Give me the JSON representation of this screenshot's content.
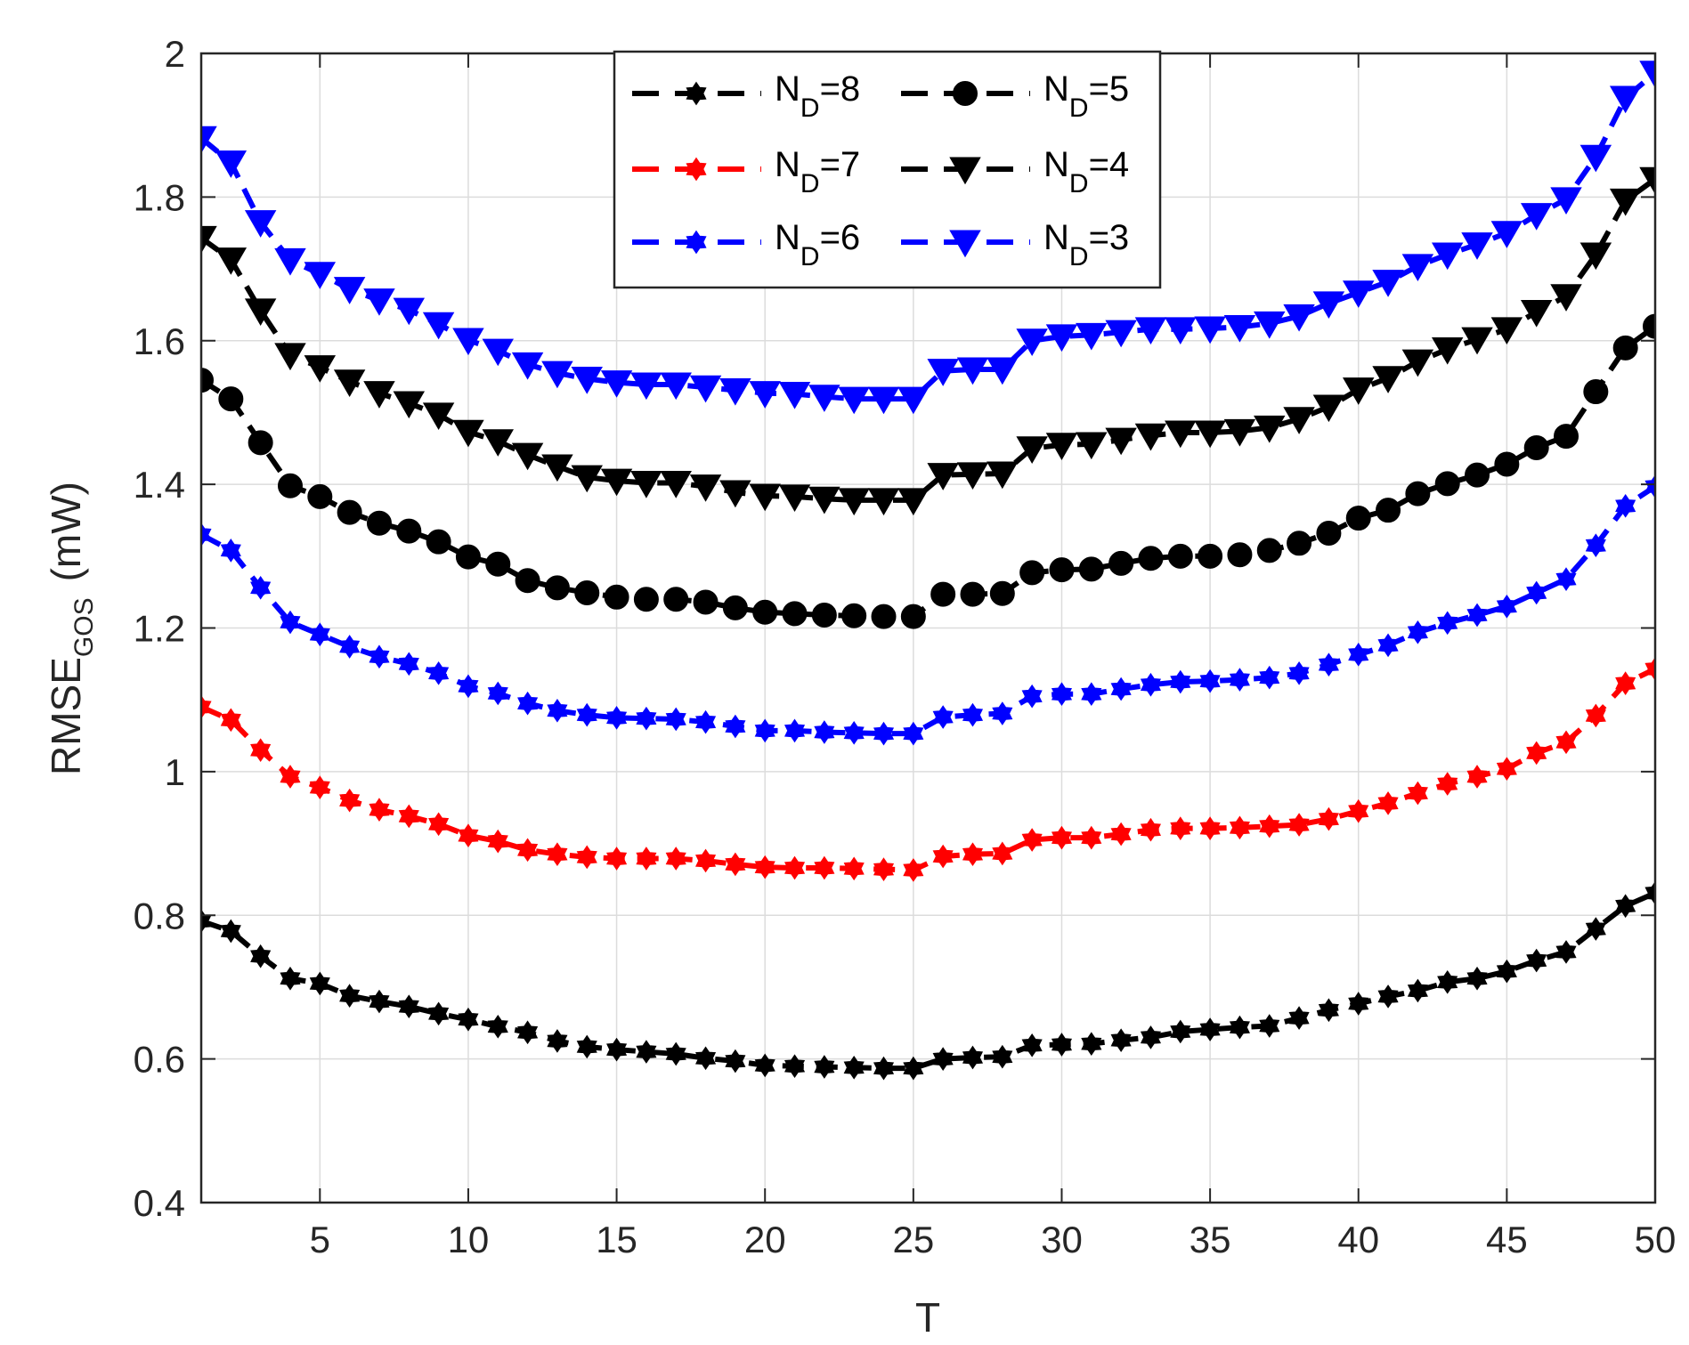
{
  "chart_data": {
    "type": "line",
    "xlabel": "T",
    "ylabel": {
      "main": "RMSE",
      "sub": "GOS",
      "unit": "(mW)"
    },
    "xlim": [
      1,
      50
    ],
    "ylim": [
      0.4,
      2
    ],
    "xticks": [
      5,
      10,
      15,
      20,
      25,
      30,
      35,
      40,
      45,
      50
    ],
    "yticks": [
      0.4,
      0.6,
      0.8,
      1,
      1.2,
      1.4,
      1.6,
      1.8,
      2
    ],
    "xtick_labels": [
      "5",
      "10",
      "15",
      "20",
      "25",
      "30",
      "35",
      "40",
      "45",
      "50"
    ],
    "ytick_labels": [
      "0.4",
      "0.6",
      "0.8",
      "1",
      "1.2",
      "1.4",
      "1.6",
      "1.8",
      "2"
    ],
    "grid": true,
    "legend_position": "top-center",
    "x": [
      1,
      2,
      3,
      4,
      5,
      6,
      7,
      8,
      9,
      10,
      11,
      12,
      13,
      14,
      15,
      16,
      17,
      18,
      19,
      20,
      21,
      22,
      23,
      24,
      25,
      26,
      27,
      28,
      29,
      30,
      31,
      32,
      33,
      34,
      35,
      36,
      37,
      38,
      39,
      40,
      41,
      42,
      43,
      44,
      45,
      46,
      47,
      48,
      49,
      50
    ],
    "series": [
      {
        "name": "N_D=8",
        "label_main": "N",
        "label_sub": "D",
        "label_suffix": "=8",
        "color": "#000000",
        "marker": "hexagram",
        "values": [
          0.792,
          0.778,
          0.743,
          0.712,
          0.705,
          0.688,
          0.68,
          0.673,
          0.663,
          0.655,
          0.645,
          0.637,
          0.625,
          0.617,
          0.613,
          0.61,
          0.607,
          0.601,
          0.597,
          0.591,
          0.59,
          0.589,
          0.588,
          0.587,
          0.587,
          0.6,
          0.602,
          0.603,
          0.619,
          0.62,
          0.621,
          0.626,
          0.63,
          0.638,
          0.641,
          0.644,
          0.646,
          0.657,
          0.668,
          0.677,
          0.687,
          0.695,
          0.707,
          0.712,
          0.722,
          0.737,
          0.749,
          0.781,
          0.813,
          0.831
        ]
      },
      {
        "name": "N_D=7",
        "label_main": "N",
        "label_sub": "D",
        "label_suffix": "=7",
        "color": "#ff0000",
        "marker": "hexagram",
        "values": [
          1.09,
          1.072,
          1.03,
          0.993,
          0.978,
          0.96,
          0.947,
          0.938,
          0.927,
          0.911,
          0.903,
          0.891,
          0.885,
          0.881,
          0.879,
          0.879,
          0.879,
          0.876,
          0.871,
          0.867,
          0.866,
          0.866,
          0.865,
          0.864,
          0.863,
          0.882,
          0.885,
          0.886,
          0.905,
          0.908,
          0.908,
          0.913,
          0.919,
          0.921,
          0.921,
          0.922,
          0.924,
          0.926,
          0.934,
          0.945,
          0.956,
          0.97,
          0.983,
          0.993,
          1.004,
          1.026,
          1.041,
          1.078,
          1.123,
          1.143
        ]
      },
      {
        "name": "N_D=6",
        "label_main": "N",
        "label_sub": "D",
        "label_suffix": "=6",
        "color": "#0000ff",
        "marker": "hexagram",
        "values": [
          1.33,
          1.308,
          1.256,
          1.208,
          1.191,
          1.174,
          1.16,
          1.15,
          1.137,
          1.119,
          1.109,
          1.095,
          1.085,
          1.079,
          1.075,
          1.074,
          1.073,
          1.069,
          1.063,
          1.057,
          1.057,
          1.055,
          1.054,
          1.053,
          1.053,
          1.076,
          1.079,
          1.081,
          1.105,
          1.108,
          1.108,
          1.115,
          1.121,
          1.125,
          1.126,
          1.128,
          1.131,
          1.137,
          1.149,
          1.163,
          1.176,
          1.194,
          1.207,
          1.218,
          1.23,
          1.249,
          1.268,
          1.315,
          1.37,
          1.397
        ]
      },
      {
        "name": "N_D=5",
        "label_main": "N",
        "label_sub": "D",
        "label_suffix": "=5",
        "color": "#000000",
        "marker": "circle",
        "values": [
          1.545,
          1.519,
          1.458,
          1.398,
          1.383,
          1.361,
          1.346,
          1.335,
          1.32,
          1.299,
          1.289,
          1.266,
          1.256,
          1.249,
          1.243,
          1.24,
          1.24,
          1.236,
          1.228,
          1.222,
          1.22,
          1.218,
          1.217,
          1.216,
          1.216,
          1.247,
          1.247,
          1.248,
          1.277,
          1.281,
          1.282,
          1.29,
          1.297,
          1.3,
          1.3,
          1.302,
          1.308,
          1.318,
          1.332,
          1.353,
          1.364,
          1.387,
          1.401,
          1.413,
          1.428,
          1.451,
          1.467,
          1.529,
          1.59,
          1.62
        ]
      },
      {
        "name": "N_D=4",
        "label_main": "N",
        "label_sub": "D",
        "label_suffix": "=4",
        "color": "#000000",
        "marker": "triangle-down",
        "values": [
          1.743,
          1.713,
          1.642,
          1.58,
          1.563,
          1.543,
          1.527,
          1.513,
          1.497,
          1.473,
          1.46,
          1.441,
          1.425,
          1.41,
          1.405,
          1.402,
          1.402,
          1.397,
          1.389,
          1.384,
          1.383,
          1.38,
          1.378,
          1.378,
          1.378,
          1.413,
          1.414,
          1.415,
          1.45,
          1.455,
          1.456,
          1.462,
          1.468,
          1.472,
          1.472,
          1.474,
          1.479,
          1.491,
          1.508,
          1.532,
          1.548,
          1.571,
          1.588,
          1.602,
          1.616,
          1.64,
          1.662,
          1.72,
          1.795,
          1.825
        ]
      },
      {
        "name": "N_D=3",
        "label_main": "N",
        "label_sub": "D",
        "label_suffix": "=3",
        "color": "#0000ff",
        "marker": "triangle-down",
        "values": [
          1.882,
          1.848,
          1.765,
          1.712,
          1.693,
          1.672,
          1.656,
          1.643,
          1.623,
          1.601,
          1.586,
          1.567,
          1.555,
          1.547,
          1.542,
          1.539,
          1.539,
          1.535,
          1.531,
          1.527,
          1.526,
          1.522,
          1.519,
          1.519,
          1.519,
          1.558,
          1.56,
          1.56,
          1.6,
          1.606,
          1.608,
          1.612,
          1.616,
          1.616,
          1.617,
          1.619,
          1.624,
          1.634,
          1.652,
          1.667,
          1.682,
          1.704,
          1.72,
          1.734,
          1.75,
          1.775,
          1.797,
          1.856,
          1.938,
          1.973
        ]
      }
    ]
  }
}
